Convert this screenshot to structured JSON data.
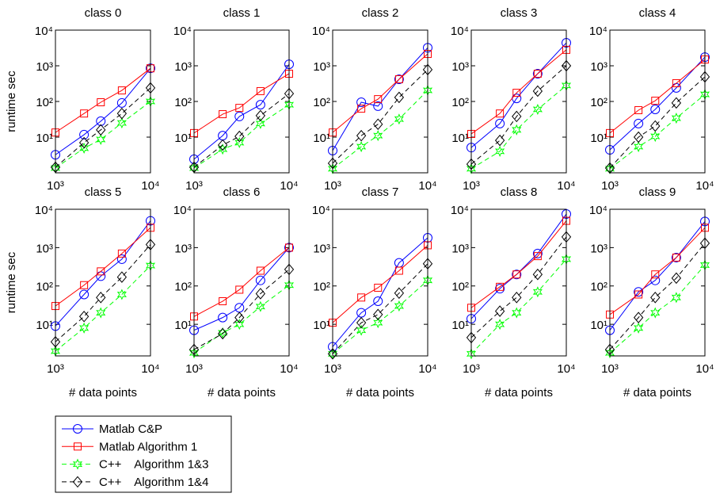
{
  "chart_data": [
    {
      "type": "line",
      "title": "class 0",
      "ylabel": "runtime sec",
      "xscale": "log",
      "yscale": "log",
      "x": [
        1000,
        2000,
        3000,
        5000,
        10000
      ],
      "xlim": [
        1000,
        10000
      ],
      "ylim": [
        1,
        10000
      ],
      "xticks": [
        {
          "value": 1000,
          "label": "10³"
        },
        {
          "value": 10000,
          "label": "10⁴"
        }
      ],
      "yticks": [
        {
          "value": 10,
          "label": "10¹"
        },
        {
          "value": 100,
          "label": "10²"
        },
        {
          "value": 1000,
          "label": "10³"
        },
        {
          "value": 10000,
          "label": "10⁴"
        }
      ],
      "series": [
        {
          "name": "Matlab C&P",
          "color": "#0000ff",
          "marker": "circle",
          "dash": false,
          "values": [
            3.2,
            11.7,
            28,
            91,
            850
          ]
        },
        {
          "name": "Matlab Algorithm 1",
          "color": "#ff0000",
          "marker": "square",
          "dash": false,
          "values": [
            13.5,
            46,
            95,
            204,
            850
          ]
        },
        {
          "name": "C++    Algorithm 1&3",
          "color": "#00ff00",
          "marker": "hexagram",
          "dash": true,
          "values": [
            1.36,
            4.9,
            8.6,
            25,
            100
          ]
        },
        {
          "name": "C++    Algorithm 1&4",
          "color": "#000000",
          "marker": "diamond",
          "dash": true,
          "values": [
            1.43,
            7,
            16,
            46,
            240
          ]
        }
      ]
    },
    {
      "type": "line",
      "title": "class 1",
      "xscale": "log",
      "yscale": "log",
      "x": [
        1000,
        2000,
        3000,
        5000,
        10000
      ],
      "xlim": [
        1000,
        10000
      ],
      "ylim": [
        1,
        10000
      ],
      "xticks": [
        {
          "value": 1000,
          "label": "10³"
        },
        {
          "value": 10000,
          "label": "10⁴"
        }
      ],
      "yticks": [
        {
          "value": 10,
          "label": "10¹"
        },
        {
          "value": 100,
          "label": "10²"
        },
        {
          "value": 1000,
          "label": "10³"
        },
        {
          "value": 10000,
          "label": "10⁴"
        }
      ],
      "series": [
        {
          "name": "Matlab C&P",
          "color": "#0000ff",
          "marker": "circle",
          "dash": false,
          "values": [
            2.4,
            11,
            38,
            81,
            1100
          ]
        },
        {
          "name": "Matlab Algorithm 1",
          "color": "#ff0000",
          "marker": "square",
          "dash": false,
          "values": [
            13,
            44,
            66,
            195,
            600
          ]
        },
        {
          "name": "C++    Algorithm 1&3",
          "color": "#00ff00",
          "marker": "hexagram",
          "dash": true,
          "values": [
            1.36,
            4.6,
            7,
            24,
            81
          ]
        },
        {
          "name": "C++    Algorithm 1&4",
          "color": "#000000",
          "marker": "diamond",
          "dash": true,
          "values": [
            1.43,
            6,
            10.5,
            40,
            166
          ]
        }
      ]
    },
    {
      "type": "line",
      "title": "class 2",
      "xscale": "log",
      "yscale": "log",
      "x": [
        1000,
        2000,
        3000,
        5000,
        10000
      ],
      "xlim": [
        1000,
        10000
      ],
      "ylim": [
        1,
        10000
      ],
      "xticks": [
        {
          "value": 1000,
          "label": "10³"
        },
        {
          "value": 10000,
          "label": "10⁴"
        }
      ],
      "yticks": [
        {
          "value": 10,
          "label": "10¹"
        },
        {
          "value": 100,
          "label": "10²"
        },
        {
          "value": 1000,
          "label": "10³"
        },
        {
          "value": 10000,
          "label": "10⁴"
        }
      ],
      "series": [
        {
          "name": "Matlab C&P",
          "color": "#0000ff",
          "marker": "circle",
          "dash": false,
          "values": [
            4.2,
            95,
            74,
            420,
            3200
          ]
        },
        {
          "name": "Matlab Algorithm 1",
          "color": "#ff0000",
          "marker": "square",
          "dash": false,
          "values": [
            13.5,
            63,
            116,
            420,
            2150
          ]
        },
        {
          "name": "C++    Algorithm 1&3",
          "color": "#00ff00",
          "marker": "hexagram",
          "dash": true,
          "values": [
            1.3,
            5.4,
            11,
            32,
            205
          ]
        },
        {
          "name": "C++    Algorithm 1&4",
          "color": "#000000",
          "marker": "diamond",
          "dash": true,
          "values": [
            1.85,
            11,
            23,
            130,
            780
          ]
        }
      ]
    },
    {
      "type": "line",
      "title": "class 3",
      "xscale": "log",
      "yscale": "log",
      "x": [
        1000,
        2000,
        3000,
        5000,
        10000
      ],
      "xlim": [
        1000,
        10000
      ],
      "ylim": [
        1,
        10000
      ],
      "xticks": [
        {
          "value": 1000,
          "label": "10³"
        },
        {
          "value": 10000,
          "label": "10⁴"
        }
      ],
      "yticks": [
        {
          "value": 10,
          "label": "10¹"
        },
        {
          "value": 100,
          "label": "10²"
        },
        {
          "value": 1000,
          "label": "10³"
        },
        {
          "value": 10000,
          "label": "10⁴"
        }
      ],
      "series": [
        {
          "name": "Matlab C&P",
          "color": "#0000ff",
          "marker": "circle",
          "dash": false,
          "values": [
            5.1,
            24,
            122,
            600,
            4400
          ]
        },
        {
          "name": "Matlab Algorithm 1",
          "color": "#ff0000",
          "marker": "square",
          "dash": false,
          "values": [
            12.3,
            46,
            175,
            600,
            2800
          ]
        },
        {
          "name": "C++    Algorithm 1&3",
          "color": "#00ff00",
          "marker": "hexagram",
          "dash": true,
          "values": [
            1.3,
            4,
            16,
            60,
            280
          ]
        },
        {
          "name": "C++    Algorithm 1&4",
          "color": "#000000",
          "marker": "diamond",
          "dash": true,
          "values": [
            1.75,
            8.1,
            38,
            195,
            1000
          ]
        }
      ]
    },
    {
      "type": "line",
      "title": "class 4",
      "xscale": "log",
      "yscale": "log",
      "x": [
        1000,
        2000,
        3000,
        5000,
        10000
      ],
      "xlim": [
        1000,
        10000
      ],
      "ylim": [
        1,
        10000
      ],
      "xticks": [
        {
          "value": 1000,
          "label": "10³"
        },
        {
          "value": 10000,
          "label": "10⁴"
        }
      ],
      "yticks": [
        {
          "value": 10,
          "label": "10¹"
        },
        {
          "value": 100,
          "label": "10²"
        },
        {
          "value": 1000,
          "label": "10³"
        },
        {
          "value": 10000,
          "label": "10⁴"
        }
      ],
      "series": [
        {
          "name": "Matlab C&P",
          "color": "#0000ff",
          "marker": "circle",
          "dash": false,
          "values": [
            4.4,
            24,
            60,
            240,
            1750
          ]
        },
        {
          "name": "Matlab Algorithm 1",
          "color": "#ff0000",
          "marker": "square",
          "dash": false,
          "values": [
            13,
            57,
            105,
            325,
            1500
          ]
        },
        {
          "name": "C++    Algorithm 1&3",
          "color": "#00ff00",
          "marker": "hexagram",
          "dash": true,
          "values": [
            1.3,
            5.4,
            10.5,
            34,
            158
          ]
        },
        {
          "name": "C++    Algorithm 1&4",
          "color": "#000000",
          "marker": "diamond",
          "dash": true,
          "values": [
            1.36,
            10,
            20.5,
            91,
            490
          ]
        }
      ]
    },
    {
      "type": "line",
      "title": "class 5",
      "ylabel": "runtime sec",
      "xlabel": "# data points",
      "xscale": "log",
      "yscale": "log",
      "x": [
        1000,
        2000,
        3000,
        5000,
        10000
      ],
      "xlim": [
        1000,
        10000
      ],
      "ylim": [
        1.5,
        10000
      ],
      "xticks": [
        {
          "value": 1000,
          "label": "10³"
        },
        {
          "value": 10000,
          "label": "10⁴"
        }
      ],
      "yticks": [
        {
          "value": 10,
          "label": "10¹"
        },
        {
          "value": 100,
          "label": "10²"
        },
        {
          "value": 1000,
          "label": "10³"
        },
        {
          "value": 10000,
          "label": "10⁴"
        }
      ],
      "series": [
        {
          "name": "Matlab C&P",
          "color": "#0000ff",
          "marker": "circle",
          "dash": false,
          "values": [
            9,
            60,
            180,
            500,
            5000
          ]
        },
        {
          "name": "Matlab Algorithm 1",
          "color": "#ff0000",
          "marker": "square",
          "dash": false,
          "values": [
            30,
            105,
            240,
            700,
            3300
          ]
        },
        {
          "name": "C++    Algorithm 1&3",
          "color": "#00ff00",
          "marker": "hexagram",
          "dash": true,
          "values": [
            2,
            8,
            20,
            60,
            340
          ]
        },
        {
          "name": "C++    Algorithm 1&4",
          "color": "#000000",
          "marker": "diamond",
          "dash": true,
          "values": [
            3.5,
            16,
            50,
            170,
            1200
          ]
        }
      ]
    },
    {
      "type": "line",
      "title": "class 6",
      "xlabel": "# data points",
      "xscale": "log",
      "yscale": "log",
      "x": [
        1000,
        2000,
        3000,
        5000,
        10000
      ],
      "xlim": [
        1000,
        10000
      ],
      "ylim": [
        1.5,
        10000
      ],
      "xticks": [
        {
          "value": 1000,
          "label": "10³"
        },
        {
          "value": 10000,
          "label": "10⁴"
        }
      ],
      "yticks": [
        {
          "value": 10,
          "label": "10¹"
        },
        {
          "value": 100,
          "label": "10²"
        },
        {
          "value": 1000,
          "label": "10³"
        },
        {
          "value": 10000,
          "label": "10⁴"
        }
      ],
      "series": [
        {
          "name": "Matlab C&P",
          "color": "#0000ff",
          "marker": "circle",
          "dash": false,
          "values": [
            7,
            15,
            27,
            140,
            1000
          ]
        },
        {
          "name": "Matlab Algorithm 1",
          "color": "#ff0000",
          "marker": "square",
          "dash": false,
          "values": [
            16,
            40,
            80,
            250,
            1000
          ]
        },
        {
          "name": "C++    Algorithm 1&3",
          "color": "#00ff00",
          "marker": "hexagram",
          "dash": true,
          "values": [
            1.8,
            6,
            10,
            29,
            105
          ]
        },
        {
          "name": "C++    Algorithm 1&4",
          "color": "#000000",
          "marker": "diamond",
          "dash": true,
          "values": [
            2.2,
            5.7,
            15,
            63,
            270
          ]
        }
      ]
    },
    {
      "type": "line",
      "title": "class 7",
      "xlabel": "# data points",
      "xscale": "log",
      "yscale": "log",
      "x": [
        1000,
        2000,
        3000,
        5000,
        10000
      ],
      "xlim": [
        1000,
        10000
      ],
      "ylim": [
        1.5,
        10000
      ],
      "xticks": [
        {
          "value": 1000,
          "label": "10³"
        },
        {
          "value": 10000,
          "label": "10⁴"
        }
      ],
      "yticks": [
        {
          "value": 10,
          "label": "10¹"
        },
        {
          "value": 100,
          "label": "10²"
        },
        {
          "value": 1000,
          "label": "10³"
        },
        {
          "value": 10000,
          "label": "10⁴"
        }
      ],
      "series": [
        {
          "name": "Matlab C&P",
          "color": "#0000ff",
          "marker": "circle",
          "dash": false,
          "values": [
            2.6,
            20,
            40,
            400,
            1800
          ]
        },
        {
          "name": "Matlab Algorithm 1",
          "color": "#ff0000",
          "marker": "square",
          "dash": false,
          "values": [
            11,
            50,
            90,
            250,
            1150
          ]
        },
        {
          "name": "C++    Algorithm 1&3",
          "color": "#00ff00",
          "marker": "hexagram",
          "dash": true,
          "values": [
            1.7,
            7,
            11,
            30,
            140
          ]
        },
        {
          "name": "C++    Algorithm 1&4",
          "color": "#000000",
          "marker": "diamond",
          "dash": true,
          "values": [
            1.7,
            11,
            18,
            65,
            380
          ]
        }
      ]
    },
    {
      "type": "line",
      "title": "class 8",
      "xlabel": "# data points",
      "xscale": "log",
      "yscale": "log",
      "x": [
        1000,
        2000,
        3000,
        5000,
        10000
      ],
      "xlim": [
        1000,
        10000
      ],
      "ylim": [
        1.5,
        10000
      ],
      "xticks": [
        {
          "value": 1000,
          "label": "10³"
        },
        {
          "value": 10000,
          "label": "10⁴"
        }
      ],
      "yticks": [
        {
          "value": 10,
          "label": "10¹"
        },
        {
          "value": 100,
          "label": "10²"
        },
        {
          "value": 1000,
          "label": "10³"
        },
        {
          "value": 10000,
          "label": "10⁴"
        }
      ],
      "series": [
        {
          "name": "Matlab C&P",
          "color": "#0000ff",
          "marker": "circle",
          "dash": false,
          "values": [
            14,
            85,
            200,
            700,
            7500
          ]
        },
        {
          "name": "Matlab Algorithm 1",
          "color": "#ff0000",
          "marker": "square",
          "dash": false,
          "values": [
            27,
            95,
            200,
            600,
            5000
          ]
        },
        {
          "name": "C++    Algorithm 1&3",
          "color": "#00ff00",
          "marker": "hexagram",
          "dash": true,
          "values": [
            1.7,
            10,
            20,
            70,
            500
          ]
        },
        {
          "name": "C++    Algorithm 1&4",
          "color": "#000000",
          "marker": "diamond",
          "dash": true,
          "values": [
            4.5,
            22,
            50,
            200,
            1900
          ]
        }
      ]
    },
    {
      "type": "line",
      "title": "class 9",
      "xlabel": "# data points",
      "xscale": "log",
      "yscale": "log",
      "x": [
        1000,
        2000,
        3000,
        5000,
        10000
      ],
      "xlim": [
        1000,
        10000
      ],
      "ylim": [
        1.5,
        10000
      ],
      "xticks": [
        {
          "value": 1000,
          "label": "10³"
        },
        {
          "value": 10000,
          "label": "10⁴"
        }
      ],
      "yticks": [
        {
          "value": 10,
          "label": "10¹"
        },
        {
          "value": 100,
          "label": "10²"
        },
        {
          "value": 1000,
          "label": "10³"
        },
        {
          "value": 10000,
          "label": "10⁴"
        }
      ],
      "series": [
        {
          "name": "Matlab C&P",
          "color": "#0000ff",
          "marker": "circle",
          "dash": false,
          "values": [
            7,
            70,
            140,
            550,
            4800
          ]
        },
        {
          "name": "Matlab Algorithm 1",
          "color": "#ff0000",
          "marker": "square",
          "dash": false,
          "values": [
            18,
            60,
            200,
            550,
            3300
          ]
        },
        {
          "name": "C++    Algorithm 1&3",
          "color": "#00ff00",
          "marker": "hexagram",
          "dash": true,
          "values": [
            1.8,
            8,
            20,
            50,
            350
          ]
        },
        {
          "name": "C++    Algorithm 1&4",
          "color": "#000000",
          "marker": "diamond",
          "dash": true,
          "values": [
            2.2,
            15,
            50,
            160,
            1300
          ]
        }
      ]
    }
  ]
}
